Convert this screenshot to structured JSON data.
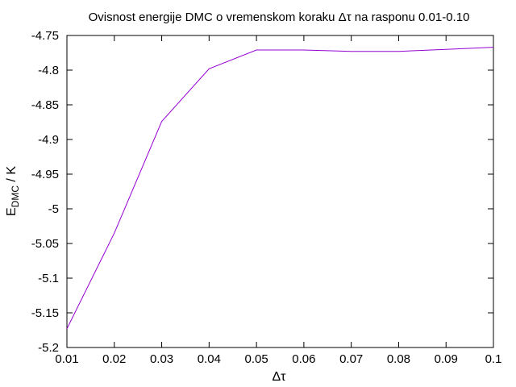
{
  "chart_data": {
    "type": "line",
    "title": "Ovisnost energije DMC o vremenskom koraku Δτ na rasponu 0.01-0.10",
    "xlabel": "Δτ",
    "ylabel_main": "E",
    "ylabel_sub": "DMC",
    "ylabel_suffix": " / K",
    "xlim": [
      0.01,
      0.1
    ],
    "ylim": [
      -5.2,
      -4.75
    ],
    "xticks": [
      "0.01",
      "0.02",
      "0.03",
      "0.04",
      "0.05",
      "0.06",
      "0.07",
      "0.08",
      "0.09",
      "0.1"
    ],
    "yticks": [
      "-4.75",
      "-4.8",
      "-4.85",
      "-4.9",
      "-4.95",
      "-5",
      "-5.05",
      "-5.1",
      "-5.15",
      "-5.2"
    ],
    "grid": false,
    "legend": false,
    "line_color": "#9400d3",
    "series": [
      {
        "x": [
          0.01,
          0.02,
          0.03,
          0.04,
          0.05,
          0.06,
          0.07,
          0.08,
          0.09,
          0.1
        ],
        "y": [
          -5.173,
          -5.035,
          -4.874,
          -4.798,
          -4.771,
          -4.771,
          -4.773,
          -4.773,
          -4.77,
          -4.767
        ]
      }
    ]
  }
}
